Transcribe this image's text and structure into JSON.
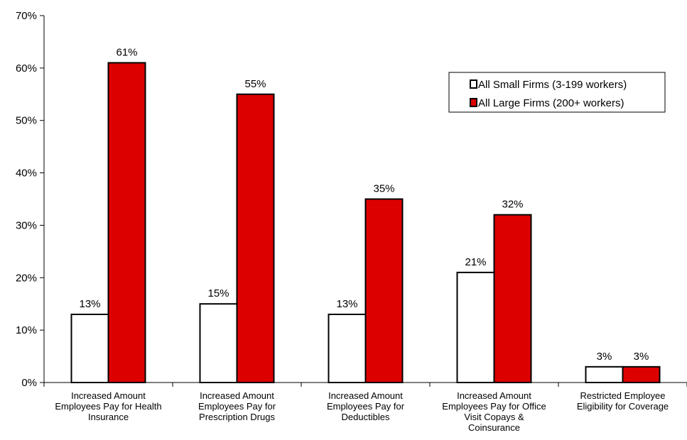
{
  "chart_data": {
    "type": "bar",
    "categories": [
      [
        "Increased Amount",
        "Employees Pay for Health",
        "Insurance"
      ],
      [
        "Increased Amount",
        "Employees Pay for",
        "Prescription Drugs"
      ],
      [
        "Increased Amount",
        "Employees Pay for",
        "Deductibles"
      ],
      [
        "Increased Amount",
        "Employees Pay for Office",
        "Visit Copays &",
        "Coinsurance"
      ],
      [
        "Restricted Employee",
        "Eligibility for Coverage"
      ]
    ],
    "series": [
      {
        "name": "All Small Firms (3-199 workers)",
        "values": [
          13,
          15,
          13,
          21,
          3
        ],
        "labels": [
          "13%",
          "15%",
          "13%",
          "21%",
          "3%"
        ],
        "color": "#ffffff"
      },
      {
        "name": "All Large Firms (200+ workers)",
        "values": [
          61,
          55,
          35,
          32,
          3
        ],
        "labels": [
          "61%",
          "55%",
          "35%",
          "32%",
          "3%"
        ],
        "color": "#dd0000"
      }
    ],
    "ylim": [
      0,
      70
    ],
    "yticks": [
      0,
      10,
      20,
      30,
      40,
      50,
      60,
      70
    ],
    "ytick_labels": [
      "0%",
      "10%",
      "20%",
      "30%",
      "40%",
      "50%",
      "60%",
      "70%"
    ],
    "legend_position": "top-right",
    "grid": false
  }
}
